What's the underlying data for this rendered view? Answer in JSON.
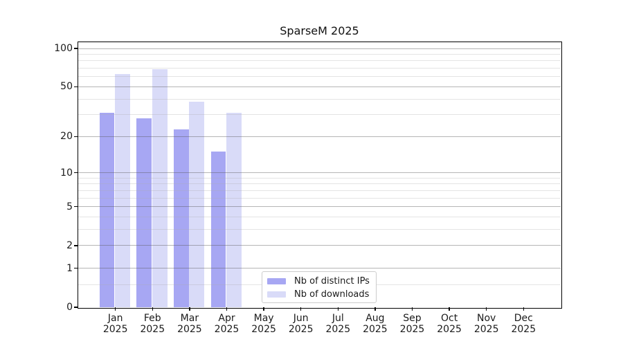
{
  "chart_data": {
    "type": "bar",
    "title": "SparseM 2025",
    "year": "2025",
    "months": [
      "Jan",
      "Feb",
      "Mar",
      "Apr",
      "May",
      "Jun",
      "Jul",
      "Aug",
      "Sep",
      "Oct",
      "Nov",
      "Dec"
    ],
    "categories": [
      "Jan 2025",
      "Feb 2025",
      "Mar 2025",
      "Apr 2025",
      "May 2025",
      "Jun 2025",
      "Jul 2025",
      "Aug 2025",
      "Sep 2025",
      "Oct 2025",
      "Nov 2025",
      "Dec 2025"
    ],
    "series": [
      {
        "name": "Nb of distinct IPs",
        "color": "#a7a7f3",
        "values": [
          31,
          28,
          23,
          15,
          0,
          0,
          0,
          0,
          0,
          0,
          0,
          0
        ]
      },
      {
        "name": "Nb of downloads",
        "color": "#d9dbf8",
        "values": [
          63,
          69,
          38,
          31,
          0,
          0,
          0,
          0,
          0,
          0,
          0,
          0
        ]
      }
    ],
    "y_axis": {
      "scale": "log1p",
      "tick_values": [
        0,
        1,
        2,
        5,
        10,
        20,
        50,
        100
      ],
      "tick_labels": [
        "0",
        "1",
        "2",
        "5",
        "10",
        "20",
        "50",
        "100"
      ],
      "minor_grid_values": [
        0.5,
        3,
        4,
        6,
        7,
        8,
        9,
        30,
        40,
        60,
        70,
        80,
        90
      ],
      "ylim": [
        0,
        112
      ]
    },
    "xlabel": "",
    "ylabel": "",
    "grid": "horizontal major and minor",
    "legend": {
      "entries": [
        "Nb of distinct IPs",
        "Nb of downloads"
      ],
      "position": "inside bottom, left of center"
    }
  },
  "colors": {
    "bar_distinct_ips": "#a7a7f3",
    "bar_downloads": "#d9dbf8",
    "major_grid": "rgba(90,90,90,0.45)",
    "minor_grid": "rgba(170,170,170,0.32)",
    "axis": "#000000",
    "text": "#1a1a1a",
    "legend_border": "#cccccc"
  }
}
